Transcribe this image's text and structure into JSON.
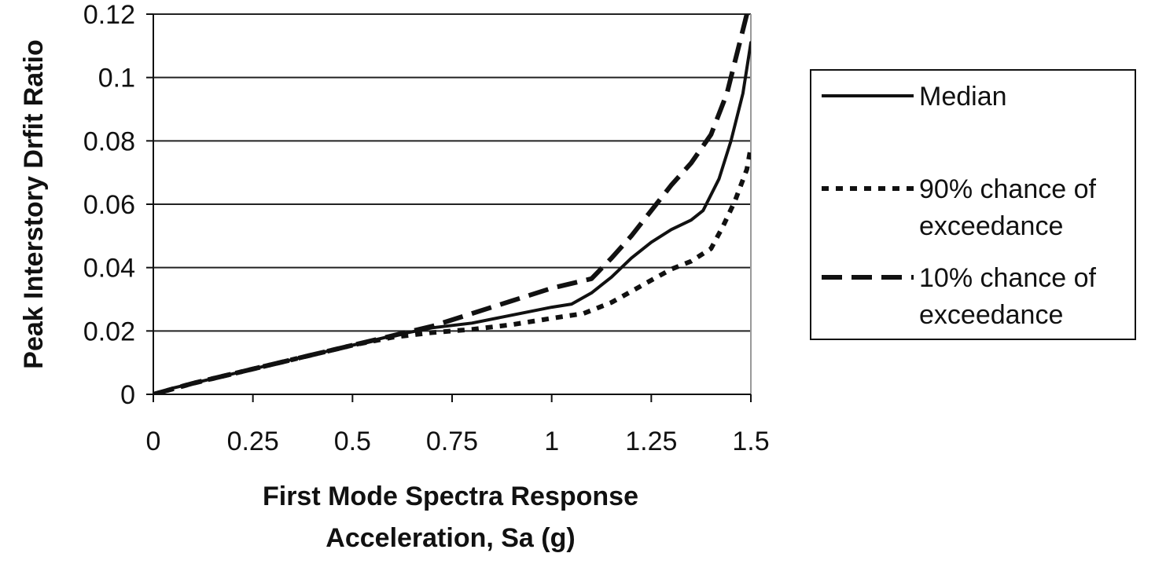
{
  "chart_data": {
    "type": "line",
    "title": "",
    "xlabel_lines": [
      "First Mode Spectra Response",
      "Acceleration, Sa (g)"
    ],
    "ylabel": "Peak Interstory Drfit Ratio",
    "xlim": [
      0,
      1.5
    ],
    "ylim": [
      0,
      0.12
    ],
    "x_ticks": [
      0,
      0.25,
      0.5,
      0.75,
      1,
      1.25,
      1.5
    ],
    "x_tick_labels": [
      "0",
      "0.25",
      "0.5",
      "0.75",
      "1",
      "1.25",
      "1.5"
    ],
    "y_ticks": [
      0,
      0.02,
      0.04,
      0.06,
      0.08,
      0.1,
      0.12
    ],
    "y_tick_labels": [
      "0",
      "0.02",
      "0.04",
      "0.06",
      "0.08",
      "0.1",
      "0.12"
    ],
    "grid": "horizontal",
    "legend_position": "right",
    "series": [
      {
        "name": "Median",
        "legend_lines": [
          "Median"
        ],
        "style": "solid",
        "color": "#111111",
        "points": [
          [
            0,
            0
          ],
          [
            0.05,
            0.002
          ],
          [
            0.1,
            0.0035
          ],
          [
            0.2,
            0.0065
          ],
          [
            0.3,
            0.0095
          ],
          [
            0.4,
            0.0125
          ],
          [
            0.5,
            0.0155
          ],
          [
            0.6,
            0.0185
          ],
          [
            0.7,
            0.021
          ],
          [
            0.8,
            0.0225
          ],
          [
            0.9,
            0.025
          ],
          [
            1.0,
            0.0275
          ],
          [
            1.05,
            0.0285
          ],
          [
            1.1,
            0.032
          ],
          [
            1.15,
            0.037
          ],
          [
            1.2,
            0.043
          ],
          [
            1.25,
            0.048
          ],
          [
            1.3,
            0.052
          ],
          [
            1.35,
            0.055
          ],
          [
            1.38,
            0.058
          ],
          [
            1.42,
            0.068
          ],
          [
            1.45,
            0.08
          ],
          [
            1.48,
            0.095
          ],
          [
            1.5,
            0.111
          ]
        ]
      },
      {
        "name": "90% chance of exceedance",
        "legend_lines": [
          "90% chance of",
          "exceedance"
        ],
        "style": "dotted",
        "color": "#111111",
        "points": [
          [
            0,
            0
          ],
          [
            0.1,
            0.0035
          ],
          [
            0.2,
            0.0065
          ],
          [
            0.3,
            0.0095
          ],
          [
            0.4,
            0.0125
          ],
          [
            0.5,
            0.0155
          ],
          [
            0.6,
            0.018
          ],
          [
            0.7,
            0.0195
          ],
          [
            0.8,
            0.0205
          ],
          [
            0.9,
            0.022
          ],
          [
            1.0,
            0.024
          ],
          [
            1.08,
            0.0255
          ],
          [
            1.15,
            0.029
          ],
          [
            1.2,
            0.0325
          ],
          [
            1.25,
            0.036
          ],
          [
            1.3,
            0.0395
          ],
          [
            1.35,
            0.042
          ],
          [
            1.4,
            0.046
          ],
          [
            1.43,
            0.053
          ],
          [
            1.46,
            0.061
          ],
          [
            1.49,
            0.071
          ],
          [
            1.5,
            0.078
          ]
        ]
      },
      {
        "name": "10% chance of exceedance",
        "legend_lines": [
          "10% chance of",
          "exceedance"
        ],
        "style": "dashed",
        "color": "#111111",
        "points": [
          [
            0,
            0
          ],
          [
            0.1,
            0.0035
          ],
          [
            0.2,
            0.0065
          ],
          [
            0.3,
            0.0095
          ],
          [
            0.4,
            0.0125
          ],
          [
            0.5,
            0.0155
          ],
          [
            0.6,
            0.0185
          ],
          [
            0.7,
            0.0215
          ],
          [
            0.8,
            0.0255
          ],
          [
            0.9,
            0.0295
          ],
          [
            1.0,
            0.0335
          ],
          [
            1.1,
            0.0365
          ],
          [
            1.15,
            0.043
          ],
          [
            1.2,
            0.05
          ],
          [
            1.25,
            0.058
          ],
          [
            1.3,
            0.066
          ],
          [
            1.35,
            0.073
          ],
          [
            1.4,
            0.082
          ],
          [
            1.44,
            0.095
          ],
          [
            1.47,
            0.11
          ],
          [
            1.49,
            0.12
          ]
        ]
      }
    ]
  }
}
